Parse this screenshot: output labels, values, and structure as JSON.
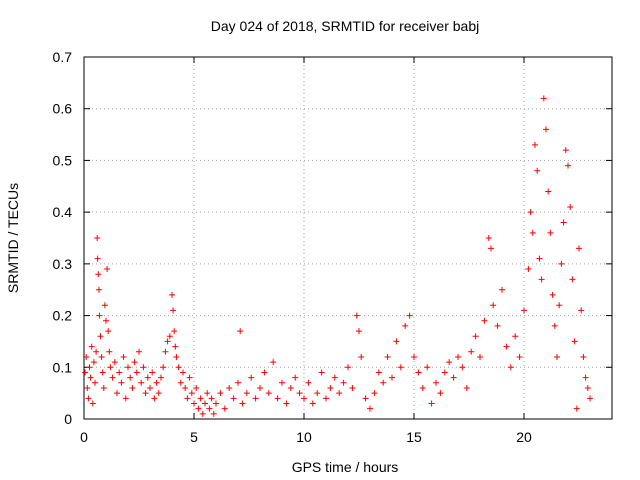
{
  "chart_data": {
    "type": "scatter",
    "title": "Day 024 of 2018, SRMTID for receiver babj",
    "xlabel": "GPS time / hours",
    "ylabel": "SRMTID / TECUs",
    "xlim": [
      0,
      24
    ],
    "ylim": [
      0,
      0.7
    ],
    "x_ticks": [
      0,
      5,
      10,
      15,
      20
    ],
    "x_tick_labels": [
      "0",
      "5",
      "10",
      "15",
      "20"
    ],
    "y_ticks": [
      0,
      0.1,
      0.2,
      0.3,
      0.4,
      0.5,
      0.6,
      0.7
    ],
    "y_tick_labels": [
      "0",
      "0.1",
      "0.2",
      "0.3",
      "0.4",
      "0.5",
      "0.6",
      "0.7"
    ],
    "grid": true,
    "marker": "+",
    "color": "#ff0000",
    "series": [
      {
        "name": "SRMTID",
        "points": [
          [
            0.05,
            0.09
          ],
          [
            0.1,
            0.12
          ],
          [
            0.15,
            0.06
          ],
          [
            0.2,
            0.04
          ],
          [
            0.25,
            0.1
          ],
          [
            0.3,
            0.08
          ],
          [
            0.35,
            0.14
          ],
          [
            0.4,
            0.03
          ],
          [
            0.45,
            0.11
          ],
          [
            0.5,
            0.07
          ],
          [
            0.55,
            0.13
          ],
          [
            0.6,
            0.35
          ],
          [
            0.62,
            0.31
          ],
          [
            0.65,
            0.28
          ],
          [
            0.68,
            0.25
          ],
          [
            0.7,
            0.2
          ],
          [
            0.75,
            0.16
          ],
          [
            0.8,
            0.12
          ],
          [
            0.85,
            0.09
          ],
          [
            0.9,
            0.06
          ],
          [
            0.95,
            0.22
          ],
          [
            1.0,
            0.19
          ],
          [
            1.05,
            0.29
          ],
          [
            1.1,
            0.17
          ],
          [
            1.15,
            0.13
          ],
          [
            1.2,
            0.1
          ],
          [
            1.3,
            0.08
          ],
          [
            1.4,
            0.11
          ],
          [
            1.5,
            0.05
          ],
          [
            1.6,
            0.09
          ],
          [
            1.7,
            0.07
          ],
          [
            1.8,
            0.12
          ],
          [
            1.9,
            0.04
          ],
          [
            2.0,
            0.1
          ],
          [
            2.1,
            0.08
          ],
          [
            2.2,
            0.06
          ],
          [
            2.3,
            0.11
          ],
          [
            2.4,
            0.09
          ],
          [
            2.5,
            0.13
          ],
          [
            2.6,
            0.07
          ],
          [
            2.7,
            0.1
          ],
          [
            2.8,
            0.05
          ],
          [
            2.9,
            0.08
          ],
          [
            3.0,
            0.06
          ],
          [
            3.1,
            0.09
          ],
          [
            3.2,
            0.04
          ],
          [
            3.3,
            0.07
          ],
          [
            3.4,
            0.05
          ],
          [
            3.5,
            0.08
          ],
          [
            3.6,
            0.1
          ],
          [
            3.7,
            0.13
          ],
          [
            3.8,
            0.15
          ],
          [
            3.9,
            0.16
          ],
          [
            4.0,
            0.24
          ],
          [
            4.05,
            0.21
          ],
          [
            4.1,
            0.17
          ],
          [
            4.15,
            0.14
          ],
          [
            4.2,
            0.12
          ],
          [
            4.3,
            0.1
          ],
          [
            4.4,
            0.07
          ],
          [
            4.5,
            0.09
          ],
          [
            4.6,
            0.06
          ],
          [
            4.7,
            0.04
          ],
          [
            4.8,
            0.08
          ],
          [
            4.9,
            0.05
          ],
          [
            5.0,
            0.03
          ],
          [
            5.1,
            0.06
          ],
          [
            5.2,
            0.02
          ],
          [
            5.3,
            0.04
          ],
          [
            5.4,
            0.01
          ],
          [
            5.5,
            0.03
          ],
          [
            5.6,
            0.05
          ],
          [
            5.7,
            0.02
          ],
          [
            5.8,
            0.04
          ],
          [
            5.9,
            0.01
          ],
          [
            6.0,
            0.03
          ],
          [
            6.2,
            0.05
          ],
          [
            6.4,
            0.02
          ],
          [
            6.6,
            0.06
          ],
          [
            6.8,
            0.04
          ],
          [
            7.0,
            0.07
          ],
          [
            7.1,
            0.17
          ],
          [
            7.2,
            0.03
          ],
          [
            7.4,
            0.05
          ],
          [
            7.6,
            0.08
          ],
          [
            7.8,
            0.04
          ],
          [
            8.0,
            0.06
          ],
          [
            8.2,
            0.09
          ],
          [
            8.4,
            0.05
          ],
          [
            8.6,
            0.11
          ],
          [
            8.8,
            0.04
          ],
          [
            9.0,
            0.07
          ],
          [
            9.2,
            0.03
          ],
          [
            9.4,
            0.06
          ],
          [
            9.6,
            0.08
          ],
          [
            9.8,
            0.05
          ],
          [
            10.0,
            0.04
          ],
          [
            10.2,
            0.07
          ],
          [
            10.4,
            0.03
          ],
          [
            10.6,
            0.05
          ],
          [
            10.8,
            0.09
          ],
          [
            11.0,
            0.04
          ],
          [
            11.2,
            0.06
          ],
          [
            11.4,
            0.08
          ],
          [
            11.6,
            0.05
          ],
          [
            11.8,
            0.07
          ],
          [
            12.0,
            0.1
          ],
          [
            12.2,
            0.06
          ],
          [
            12.4,
            0.2
          ],
          [
            12.5,
            0.17
          ],
          [
            12.6,
            0.12
          ],
          [
            12.8,
            0.04
          ],
          [
            13.0,
            0.02
          ],
          [
            13.2,
            0.05
          ],
          [
            13.4,
            0.09
          ],
          [
            13.6,
            0.07
          ],
          [
            13.8,
            0.12
          ],
          [
            14.0,
            0.08
          ],
          [
            14.2,
            0.15
          ],
          [
            14.4,
            0.1
          ],
          [
            14.6,
            0.18
          ],
          [
            14.8,
            0.2
          ],
          [
            15.0,
            0.12
          ],
          [
            15.2,
            0.09
          ],
          [
            15.4,
            0.06
          ],
          [
            15.6,
            0.1
          ],
          [
            15.8,
            0.03
          ],
          [
            16.0,
            0.07
          ],
          [
            16.2,
            0.05
          ],
          [
            16.4,
            0.09
          ],
          [
            16.6,
            0.11
          ],
          [
            16.8,
            0.08
          ],
          [
            17.0,
            0.12
          ],
          [
            17.2,
            0.1
          ],
          [
            17.4,
            0.06
          ],
          [
            17.6,
            0.13
          ],
          [
            17.8,
            0.16
          ],
          [
            18.0,
            0.12
          ],
          [
            18.2,
            0.19
          ],
          [
            18.4,
            0.35
          ],
          [
            18.5,
            0.33
          ],
          [
            18.6,
            0.22
          ],
          [
            18.8,
            0.18
          ],
          [
            19.0,
            0.25
          ],
          [
            19.2,
            0.14
          ],
          [
            19.4,
            0.1
          ],
          [
            19.6,
            0.16
          ],
          [
            19.8,
            0.12
          ],
          [
            20.0,
            0.21
          ],
          [
            20.2,
            0.29
          ],
          [
            20.3,
            0.4
          ],
          [
            20.4,
            0.36
          ],
          [
            20.5,
            0.53
          ],
          [
            20.6,
            0.48
          ],
          [
            20.7,
            0.31
          ],
          [
            20.8,
            0.27
          ],
          [
            20.9,
            0.62
          ],
          [
            21.0,
            0.56
          ],
          [
            21.1,
            0.44
          ],
          [
            21.2,
            0.36
          ],
          [
            21.3,
            0.24
          ],
          [
            21.4,
            0.18
          ],
          [
            21.5,
            0.12
          ],
          [
            21.6,
            0.22
          ],
          [
            21.7,
            0.3
          ],
          [
            21.8,
            0.38
          ],
          [
            21.9,
            0.52
          ],
          [
            22.0,
            0.49
          ],
          [
            22.1,
            0.41
          ],
          [
            22.2,
            0.27
          ],
          [
            22.3,
            0.15
          ],
          [
            22.4,
            0.02
          ],
          [
            22.5,
            0.33
          ],
          [
            22.6,
            0.21
          ],
          [
            22.7,
            0.12
          ],
          [
            22.8,
            0.08
          ],
          [
            22.9,
            0.06
          ],
          [
            23.0,
            0.04
          ]
        ]
      }
    ]
  }
}
